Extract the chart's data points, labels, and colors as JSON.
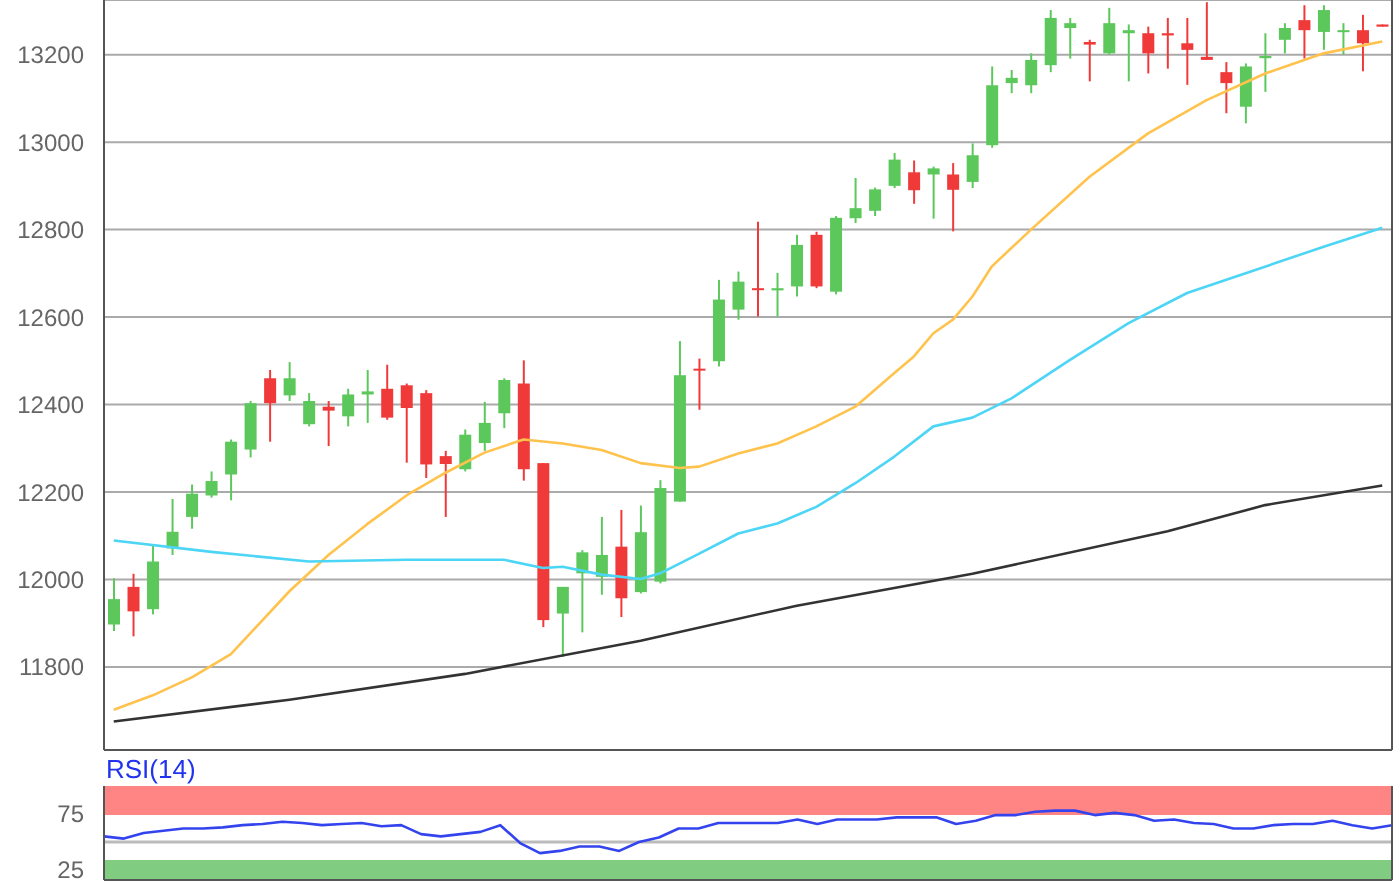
{
  "chart_data": [
    {
      "type": "candlestick",
      "categories": [
        null,
        null,
        null,
        null,
        null,
        null,
        null,
        null,
        null,
        null,
        null,
        null,
        null,
        null,
        null,
        null,
        null,
        null,
        null,
        null,
        null,
        null,
        null,
        null,
        null,
        null,
        null,
        null,
        null,
        null,
        null,
        null,
        null,
        null,
        null,
        null,
        null,
        null,
        null,
        null,
        null,
        null,
        null,
        null,
        null,
        null,
        null,
        null,
        null,
        null,
        null,
        null,
        null,
        null,
        null,
        null,
        null,
        null,
        null,
        null,
        null,
        null,
        null,
        null,
        null,
        null
      ],
      "ohlc": [
        [
          11897,
          12003,
          11882,
          11955
        ],
        [
          11983,
          12013,
          11870,
          11927
        ],
        [
          11932,
          12081,
          11920,
          12041
        ],
        [
          12071,
          12184,
          12056,
          12109
        ],
        [
          12143,
          12217,
          12116,
          12196
        ],
        [
          12192,
          12247,
          12187,
          12225
        ],
        [
          12240,
          12320,
          12181,
          12315
        ],
        [
          12297,
          12408,
          12279,
          12403
        ],
        [
          12460,
          12479,
          12315,
          12403
        ],
        [
          12421,
          12497,
          12408,
          12460
        ],
        [
          12355,
          12426,
          12350,
          12408
        ],
        [
          12395,
          12408,
          12305,
          12386
        ],
        [
          12373,
          12436,
          12350,
          12423
        ],
        [
          12423,
          12479,
          12358,
          12430
        ],
        [
          12436,
          12491,
          12365,
          12370
        ],
        [
          12444,
          12448,
          12267,
          12392
        ],
        [
          12426,
          12433,
          12232,
          12263
        ],
        [
          12282,
          12294,
          12143,
          12264
        ],
        [
          12252,
          12343,
          12247,
          12331
        ],
        [
          12312,
          12406,
          12294,
          12358
        ],
        [
          12380,
          12460,
          12346,
          12456
        ],
        [
          12448,
          12501,
          12226,
          12252
        ],
        [
          12266,
          12266,
          11891,
          11907
        ],
        [
          11922,
          11983,
          11823,
          11983
        ],
        [
          12014,
          12067,
          11879,
          12062
        ],
        [
          12006,
          12143,
          11965,
          12056
        ],
        [
          12075,
          12159,
          11914,
          11957
        ],
        [
          11971,
          12169,
          11968,
          12108
        ],
        [
          11995,
          12227,
          11991,
          12209
        ],
        [
          12178,
          12545,
          12178,
          12467
        ],
        [
          12482,
          12505,
          12388,
          12479
        ],
        [
          12499,
          12685,
          12487,
          12640
        ],
        [
          12617,
          12704,
          12594,
          12681
        ],
        [
          12666,
          12818,
          12601,
          12663
        ],
        [
          12661,
          12701,
          12601,
          12666
        ],
        [
          12670,
          12788,
          12647,
          12765
        ],
        [
          12788,
          12795,
          12666,
          12670
        ],
        [
          12658,
          12831,
          12652,
          12827
        ],
        [
          12826,
          12918,
          12815,
          12849
        ],
        [
          12843,
          12896,
          12831,
          12892
        ],
        [
          12900,
          12975,
          12895,
          12960
        ],
        [
          12931,
          12958,
          12859,
          12890
        ],
        [
          12926,
          12944,
          12825,
          12940
        ],
        [
          12926,
          12952,
          12796,
          12891
        ],
        [
          12909,
          12997,
          12895,
          12970
        ],
        [
          12993,
          13173,
          12987,
          13130
        ],
        [
          13135,
          13165,
          13112,
          13147
        ],
        [
          13130,
          13203,
          13112,
          13188
        ],
        [
          13176,
          13302,
          13160,
          13284
        ],
        [
          13261,
          13284,
          13191,
          13272
        ],
        [
          13229,
          13234,
          13139,
          13223
        ],
        [
          13203,
          13307,
          13200,
          13272
        ],
        [
          13249,
          13269,
          13139,
          13256
        ],
        [
          13249,
          13264,
          13157,
          13203
        ],
        [
          13249,
          13284,
          13168,
          13244
        ],
        [
          13226,
          13284,
          13131,
          13211
        ],
        [
          13195,
          13320,
          13188,
          13188
        ],
        [
          13160,
          13183,
          13066,
          13135
        ],
        [
          13081,
          13180,
          13043,
          13173
        ],
        [
          13192,
          13249,
          13115,
          13197
        ],
        [
          13234,
          13272,
          13203,
          13261
        ],
        [
          13279,
          13313,
          13191,
          13256
        ],
        [
          13252,
          13313,
          13211,
          13302
        ],
        [
          13252,
          13272,
          13200,
          13256
        ],
        [
          13256,
          13291,
          13162,
          13226
        ],
        [
          13269,
          13269,
          13264,
          13264
        ]
      ],
      "series": [
        {
          "type": "line",
          "color": "#ffc34d",
          "values": [
            11702,
            null,
            11735,
            null,
            11776,
            null,
            11829,
            null,
            null,
            11973,
            null,
            12056,
            null,
            12127,
            null,
            12192,
            null,
            12244,
            null,
            12290,
            null,
            12320,
            null,
            12311,
            null,
            12296,
            null,
            12266,
            null,
            12255,
            12258,
            null,
            12288,
            null,
            12311,
            null,
            12350,
            null,
            12395,
            null,
            12472,
            12510,
            12563,
            12594,
            12647,
            12716,
            null,
            12800,
            null,
            null,
            12921,
            null,
            null,
            13020,
            null,
            null,
            13096,
            null,
            null,
            13157,
            null,
            null,
            13203,
            null,
            null,
            13230
          ]
        },
        {
          "type": "line",
          "color": "#4dd5f5",
          "values": [
            12089,
            null,
            null,
            null,
            null,
            12063,
            null,
            null,
            null,
            null,
            12041,
            null,
            null,
            null,
            null,
            12045,
            null,
            null,
            null,
            null,
            12045,
            null,
            12026,
            12029,
            null,
            12011,
            null,
            12001,
            12014,
            null,
            12059,
            null,
            12105,
            null,
            12128,
            null,
            12166,
            null,
            12220,
            null,
            12281,
            null,
            12350,
            null,
            12370,
            null,
            12414,
            null,
            null,
            12502,
            null,
            null,
            12586,
            null,
            null,
            12655,
            null,
            null,
            12700,
            null,
            null,
            null,
            12761,
            null,
            null,
            12804
          ]
        },
        {
          "type": "line",
          "color": "#333333",
          "values": [
            11675,
            null,
            null,
            null,
            null,
            null,
            null,
            null,
            null,
            11725,
            null,
            null,
            null,
            null,
            null,
            null,
            null,
            null,
            11784,
            null,
            null,
            null,
            null,
            null,
            null,
            null,
            null,
            11860,
            null,
            null,
            null,
            null,
            null,
            null,
            null,
            11940,
            null,
            null,
            null,
            null,
            null,
            null,
            null,
            null,
            12013,
            null,
            null,
            null,
            null,
            null,
            null,
            null,
            null,
            null,
            12110,
            null,
            null,
            null,
            null,
            12170,
            null,
            null,
            null,
            null,
            null,
            12215
          ]
        }
      ],
      "ylim": [
        11610,
        13325
      ],
      "yticks": [
        11800,
        12000,
        12200,
        12400,
        12600,
        12800,
        13000,
        13200
      ],
      "grid": "y",
      "tick_labels": "y"
    },
    {
      "type": "line",
      "title": "RSI(14)",
      "categories": [
        null,
        null,
        null,
        null,
        null,
        null,
        null,
        null,
        null,
        null,
        null,
        null,
        null,
        null,
        null,
        null,
        null,
        null,
        null,
        null,
        null,
        null,
        null,
        null,
        null,
        null,
        null,
        null,
        null,
        null,
        null,
        null,
        null,
        null,
        null,
        null,
        null,
        null,
        null,
        null,
        null,
        null,
        null,
        null,
        null,
        null,
        null,
        null,
        null,
        null,
        null,
        null,
        null,
        null,
        null,
        null,
        null,
        null,
        null,
        null,
        null,
        null,
        null,
        null,
        null,
        null
      ],
      "series": [
        {
          "color": "#3344ee",
          "values": [
            55,
            53,
            58,
            60,
            62,
            62,
            63,
            65,
            66,
            68,
            67,
            65,
            66,
            67,
            64,
            65,
            57,
            55,
            57,
            59,
            65,
            49,
            40,
            42,
            46,
            46,
            42,
            50,
            54,
            62,
            62,
            67,
            67,
            67,
            67,
            70,
            66,
            70,
            70,
            70,
            72,
            72,
            72,
            66,
            69,
            74,
            74,
            77,
            78,
            78,
            74,
            76,
            74,
            69,
            70,
            67,
            66,
            62,
            62,
            65,
            66,
            66,
            69,
            65,
            62,
            65
          ]
        }
      ],
      "ylim": [
        16,
        100
      ],
      "yticks": [
        25,
        75
      ],
      "bands": [
        {
          "axis": "y",
          "from": 75,
          "to": 100,
          "color": "#ff8585"
        },
        {
          "axis": "y",
          "from": 16,
          "to": 33,
          "color": "#80cc80"
        }
      ],
      "ref_lines": [
        {
          "axis": "y",
          "value": 50,
          "color": "#bbbbbb"
        }
      ],
      "grid": false,
      "tick_labels": "y"
    }
  ]
}
